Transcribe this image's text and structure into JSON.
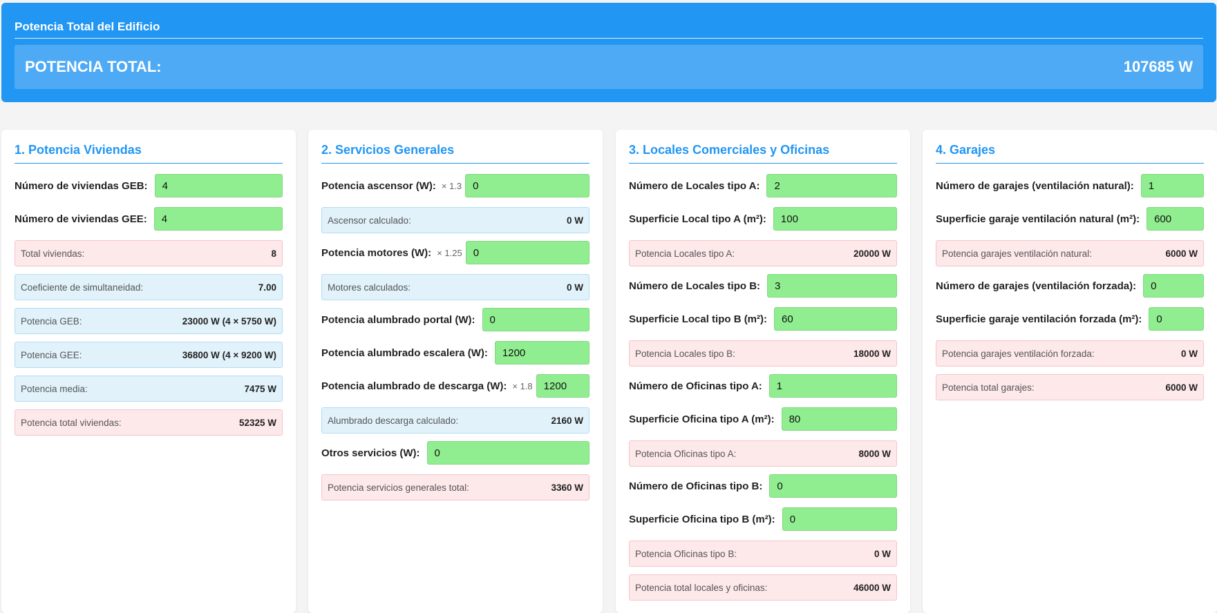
{
  "header": {
    "title": "Potencia Total del Edificio",
    "total_label": "POTENCIA TOTAL:",
    "total_value": "107685 W"
  },
  "viviendas": {
    "title": "1. Potencia Viviendas",
    "geb_label": "Número de viviendas GEB:",
    "geb_value": "4",
    "gee_label": "Número de viviendas GEE:",
    "gee_value": "4",
    "total_label": "Total viviendas:",
    "total_value": "8",
    "coef_label": "Coeficiente de simultaneidad:",
    "coef_value": "7.00",
    "pgeb_label": "Potencia GEB:",
    "pgeb_value": "23000 W (4 × 5750 W)",
    "pgee_label": "Potencia GEE:",
    "pgee_value": "36800 W (4 × 9200 W)",
    "media_label": "Potencia media:",
    "media_value": "7475 W",
    "ptotal_label": "Potencia total viviendas:",
    "ptotal_value": "52325 W"
  },
  "servicios": {
    "title": "2. Servicios Generales",
    "ascensor_label": "Potencia ascensor (W):",
    "ascensor_mult": "× 1.3",
    "ascensor_value": "0",
    "ascensor_calc_label": "Ascensor calculado:",
    "ascensor_calc_value": "0 W",
    "motores_label": "Potencia motores (W):",
    "motores_mult": "× 1.25",
    "motores_value": "0",
    "motores_calc_label": "Motores calculados:",
    "motores_calc_value": "0 W",
    "portal_label": "Potencia alumbrado portal (W):",
    "portal_value": "0",
    "escalera_label": "Potencia alumbrado escalera (W):",
    "escalera_value": "1200",
    "descarga_label": "Potencia alumbrado de descarga (W):",
    "descarga_mult": "× 1.8",
    "descarga_value": "1200",
    "descarga_calc_label": "Alumbrado descarga calculado:",
    "descarga_calc_value": "2160 W",
    "otros_label": "Otros servicios (W):",
    "otros_value": "0",
    "total_label": "Potencia servicios generales total:",
    "total_value": "3360 W"
  },
  "locales": {
    "title": "3. Locales Comerciales y Oficinas",
    "la_num_label": "Número de Locales tipo A:",
    "la_num_value": "2",
    "la_sup_label": "Superficie Local tipo A (m²):",
    "la_sup_value": "100",
    "la_pot_label": "Potencia Locales tipo A:",
    "la_pot_value": "20000 W",
    "lb_num_label": "Número de Locales tipo B:",
    "lb_num_value": "3",
    "lb_sup_label": "Superficie Local tipo B (m²):",
    "lb_sup_value": "60",
    "lb_pot_label": "Potencia Locales tipo B:",
    "lb_pot_value": "18000 W",
    "oa_num_label": "Número de Oficinas tipo A:",
    "oa_num_value": "1",
    "oa_sup_label": "Superficie Oficina tipo A (m²):",
    "oa_sup_value": "80",
    "oa_pot_label": "Potencia Oficinas tipo A:",
    "oa_pot_value": "8000 W",
    "ob_num_label": "Número de Oficinas tipo B:",
    "ob_num_value": "0",
    "ob_sup_label": "Superficie Oficina tipo B (m²):",
    "ob_sup_value": "0",
    "ob_pot_label": "Potencia Oficinas tipo B:",
    "ob_pot_value": "0 W",
    "total_label": "Potencia total locales y oficinas:",
    "total_value": "46000 W"
  },
  "garajes": {
    "title": "4. Garajes",
    "nat_num_label": "Número de garajes (ventilación natural):",
    "nat_num_value": "1",
    "nat_sup_label": "Superficie garaje ventilación natural (m²):",
    "nat_sup_value": "600",
    "nat_pot_label": "Potencia garajes ventilación natural:",
    "nat_pot_value": "6000 W",
    "for_num_label": "Número de garajes (ventilación forzada):",
    "for_num_value": "0",
    "for_sup_label": "Superficie garaje ventilación forzada (m²):",
    "for_sup_value": "0",
    "for_pot_label": "Potencia garajes ventilación forzada:",
    "for_pot_value": "0 W",
    "total_label": "Potencia total garajes:",
    "total_value": "6000 W"
  }
}
